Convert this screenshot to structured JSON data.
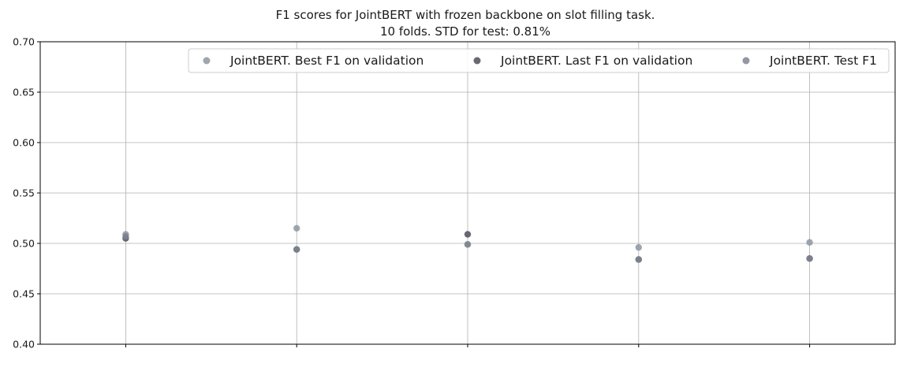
{
  "chart_data": {
    "type": "scatter",
    "title": "F1 scores for JointBERT with frozen backbone on slot filling task.",
    "subtitle": "10 folds. STD for test: 0.81%",
    "xlabel": "",
    "ylabel": "",
    "x": [
      1,
      2,
      3,
      4,
      5
    ],
    "xlim": [
      0.5,
      5.5
    ],
    "ylim": [
      0.4,
      0.7
    ],
    "yticks": [
      0.4,
      0.45,
      0.5,
      0.55,
      0.6,
      0.65,
      0.7
    ],
    "ytick_labels": [
      "0.40",
      "0.45",
      "0.50",
      "0.55",
      "0.60",
      "0.65",
      "0.70"
    ],
    "grid": true,
    "legend_placement": "top-right",
    "series": [
      {
        "name": "JointBERT. Best F1 on validation",
        "color": "#8e96a0",
        "values": [
          0.509,
          0.515,
          0.499,
          0.496,
          0.501
        ]
      },
      {
        "name": "JointBERT. Last F1 on validation",
        "color": "#4d4f5c",
        "values": [
          0.505,
          0.494,
          0.509,
          0.484,
          0.485
        ]
      },
      {
        "name": "JointBERT. Test F1",
        "color": "#7f8590",
        "values": [
          0.507,
          0.494,
          0.499,
          0.484,
          0.485
        ]
      }
    ]
  }
}
